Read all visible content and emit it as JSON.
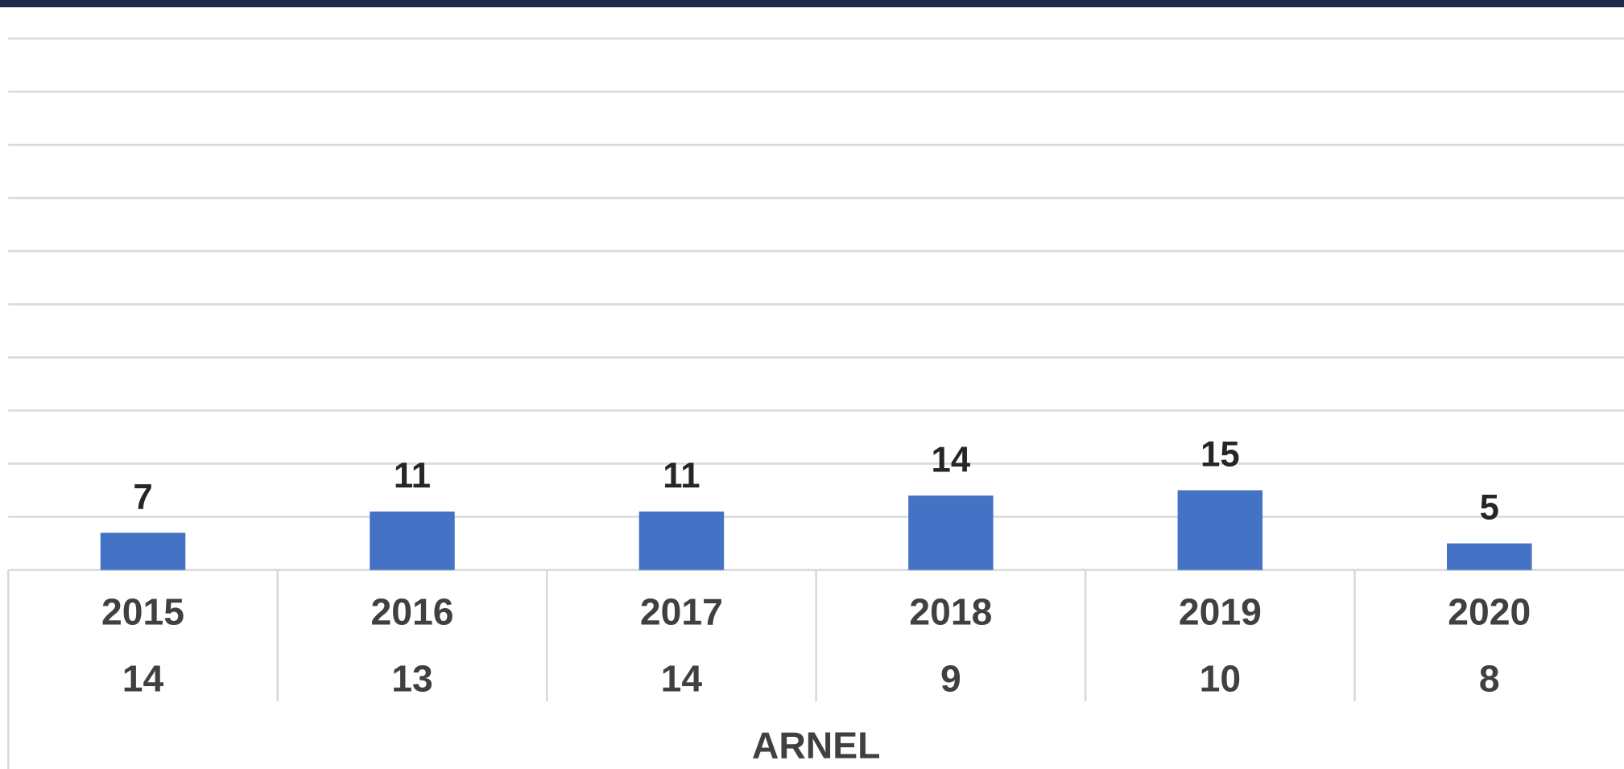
{
  "chart_data": {
    "type": "bar",
    "categories": [
      "2015",
      "2016",
      "2017",
      "2018",
      "2019",
      "2020"
    ],
    "sublabels": [
      14,
      13,
      14,
      9,
      10,
      8
    ],
    "group_label": "ARNEL",
    "values": [
      7,
      11,
      11,
      14,
      15,
      5
    ],
    "color": "#4472c4",
    "ylim": [
      0,
      100
    ],
    "yticks": [
      0,
      10,
      20,
      30,
      40,
      50,
      60,
      70,
      80,
      90,
      100
    ],
    "grid": true
  }
}
